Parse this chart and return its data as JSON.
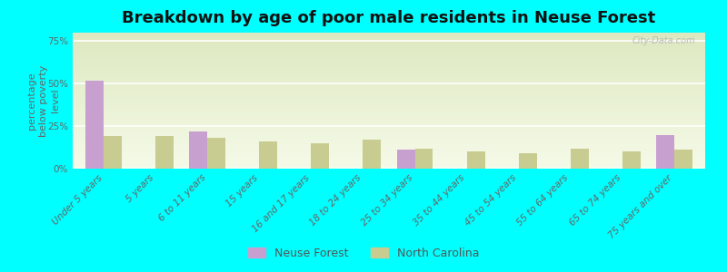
{
  "title": "Breakdown by age of poor male residents in Neuse Forest",
  "categories": [
    "Under 5 years",
    "5 years",
    "6 to 11 years",
    "15 years",
    "16 and 17 years",
    "18 to 24 years",
    "25 to 34 years",
    "35 to 44 years",
    "45 to 54 years",
    "55 to 64 years",
    "65 to 74 years",
    "75 years and over"
  ],
  "neuse_forest": [
    52,
    0,
    22,
    0,
    0,
    0,
    11,
    0,
    0,
    0,
    0,
    20
  ],
  "north_carolina": [
    19,
    19,
    18,
    16,
    15,
    17,
    12,
    10,
    9,
    12,
    10,
    11
  ],
  "neuse_color": "#c8a0d0",
  "nc_color": "#c8cc90",
  "background_outer": "#00ffff",
  "background_plot_top": "#dde8c0",
  "background_plot_bottom": "#f5fae8",
  "ylabel": "percentage\nbelow poverty\nlevel",
  "ylim": [
    0,
    80
  ],
  "yticks": [
    0,
    25,
    50,
    75
  ],
  "ytick_labels": [
    "0%",
    "25%",
    "50%",
    "75%"
  ],
  "bar_width": 0.35,
  "title_fontsize": 13,
  "axis_label_fontsize": 8,
  "tick_fontsize": 7.5,
  "legend_labels": [
    "Neuse Forest",
    "North Carolina"
  ],
  "watermark": "City-Data.com"
}
